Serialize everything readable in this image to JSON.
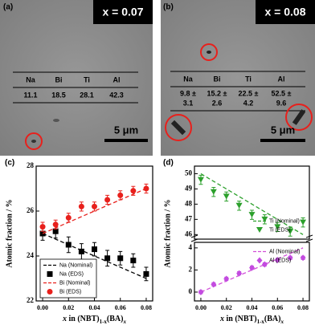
{
  "panels": [
    {
      "label": "(a)",
      "composition": "x = 0.07",
      "table": {
        "header": [
          "Na",
          "Bi",
          "Ti",
          "Al"
        ],
        "rows": [
          [
            "11.1",
            "18.5",
            "28.1",
            "42.3"
          ]
        ]
      },
      "scale": "5 μm"
    },
    {
      "label": "(b)",
      "composition": "x = 0.08",
      "table": {
        "header": [
          "Na",
          "Bi",
          "Ti",
          "Al"
        ],
        "rows": [
          [
            "9.8 ±",
            "15.2 ±",
            "22.5 ±",
            "52.5 ±"
          ],
          [
            "3.1",
            "2.6",
            "4.2",
            "9.6"
          ]
        ]
      },
      "scale": "5 μm"
    }
  ],
  "chart_data": [
    {
      "type": "line",
      "label": "(c)",
      "ylabel": "Atomic fraction / %",
      "xlabel": [
        "x",
        " in (NBT)",
        "1-x",
        "(BA)",
        "x"
      ],
      "xlim": [
        -0.005,
        0.085
      ],
      "xticks": [
        {
          "value": 0,
          "label": "0.00"
        },
        0.02,
        0.04,
        0.06,
        0.08
      ],
      "ylim": [
        22,
        28
      ],
      "yticks": [
        22,
        24,
        26,
        28
      ],
      "legend": "lower left",
      "series": [
        {
          "name": "Na (Nominal)",
          "color": "#000000",
          "dash": true,
          "x": [
            0,
            0.08
          ],
          "values": [
            25.0,
            23.0
          ]
        },
        {
          "name": "Na (EDS)",
          "color": "#000000",
          "marker": "square",
          "x": [
            0,
            0.01,
            0.02,
            0.03,
            0.04,
            0.05,
            0.06,
            0.07,
            0.08
          ],
          "values": [
            25.0,
            25.1,
            24.5,
            24.2,
            24.3,
            23.9,
            23.9,
            23.8,
            23.2
          ],
          "errors": [
            0.3,
            0.3,
            0.35,
            0.35,
            0.3,
            0.35,
            0.3,
            0.3,
            0.3
          ]
        },
        {
          "name": "Bi (Nominal)",
          "color": "#e8201c",
          "dash": true,
          "x": [
            0,
            0.08
          ],
          "values": [
            25.0,
            27.0
          ]
        },
        {
          "name": "Bi (EDS)",
          "color": "#e8201c",
          "marker": "circle",
          "x": [
            0,
            0.01,
            0.02,
            0.03,
            0.04,
            0.05,
            0.06,
            0.07,
            0.08
          ],
          "values": [
            25.3,
            25.4,
            25.7,
            26.2,
            26.2,
            26.5,
            26.7,
            26.9,
            27.0
          ],
          "errors": [
            0.2,
            0.2,
            0.2,
            0.2,
            0.2,
            0.2,
            0.2,
            0.2,
            0.2
          ]
        }
      ]
    },
    {
      "type": "line",
      "label": "(d)",
      "ylabel": "Atomic fraction / %",
      "xlim": [
        -0.005,
        0.085
      ],
      "ylim": [
        45.7,
        50.5
      ],
      "yticks": [
        46,
        47,
        48,
        49,
        50
      ],
      "legend": "lower right",
      "series": [
        {
          "name": "Ti (Nominal)",
          "color": "#2ca02c",
          "dash": true,
          "x": [
            0,
            0.08
          ],
          "values": [
            50.0,
            46.0
          ]
        },
        {
          "name": "Ti (EDS)",
          "color": "#2ca02c",
          "marker": "triangle-down",
          "x": [
            0,
            0.01,
            0.02,
            0.03,
            0.04,
            0.05,
            0.06,
            0.07,
            0.08
          ],
          "values": [
            49.6,
            48.8,
            48.5,
            47.9,
            47.3,
            47.0,
            46.5,
            46.2,
            46.8
          ],
          "errors": [
            0.3,
            0.3,
            0.3,
            0.3,
            0.3,
            0.3,
            0.3,
            0.3,
            0.3
          ]
        }
      ]
    },
    {
      "type": "line",
      "xlabel": [
        "x",
        " in (NBT)",
        "1-x",
        "(BA)",
        "x"
      ],
      "xlim": [
        -0.005,
        0.085
      ],
      "xticks": [
        {
          "value": 0,
          "label": "0.00"
        },
        0.02,
        0.04,
        0.06,
        0.08
      ],
      "ylim": [
        -0.8,
        4.5
      ],
      "yticks": [
        0,
        2,
        4
      ],
      "legend": "upper right",
      "series": [
        {
          "name": "Al (Nominal)",
          "color": "#d24fd8",
          "dash": true,
          "x": [
            0,
            0.08
          ],
          "values": [
            0.0,
            4.0
          ]
        },
        {
          "name": "Al (EDS)",
          "color": "#c34be0",
          "marker": "diamond",
          "x": [
            0,
            0.01,
            0.02,
            0.03,
            0.04,
            0.05,
            0.06,
            0.07,
            0.08
          ],
          "values": [
            0.0,
            0.7,
            1.2,
            1.7,
            2.2,
            2.5,
            2.9,
            3.1,
            3.1
          ],
          "errors": [
            0.15,
            0.15,
            0.15,
            0.15,
            0.15,
            0.15,
            0.15,
            0.15,
            0.15
          ]
        }
      ]
    }
  ]
}
